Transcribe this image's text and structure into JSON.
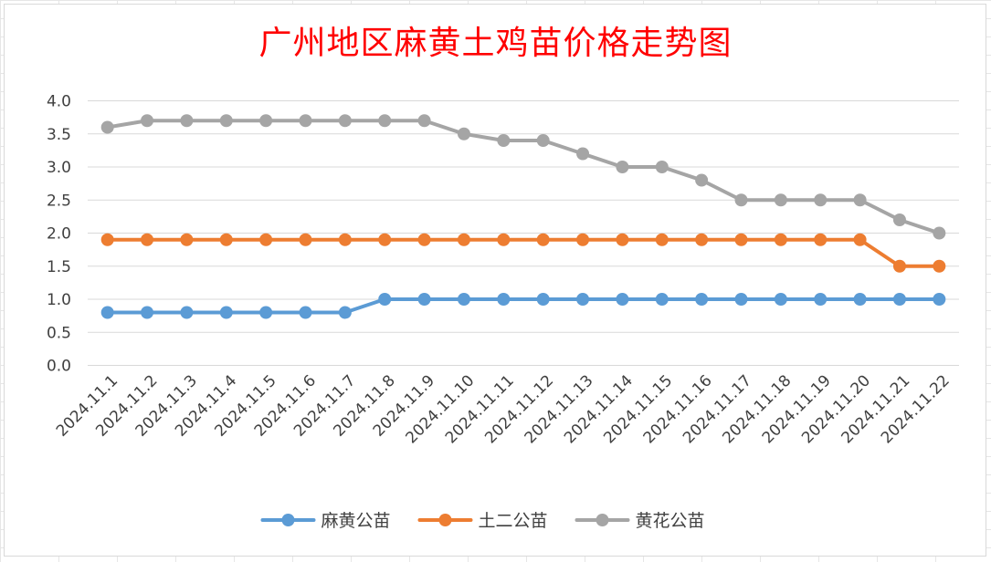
{
  "chart_data": {
    "type": "line",
    "title": "广州地区麻黄土鸡苗价格走势图",
    "xlabel": "",
    "ylabel": "",
    "ylim": [
      0,
      4
    ],
    "yticks": [
      "0.0",
      "0.5",
      "1.0",
      "1.5",
      "2.0",
      "2.5",
      "3.0",
      "3.5",
      "4.0"
    ],
    "grid": true,
    "legend_position": "bottom",
    "categories": [
      "2024.11.1",
      "2024.11.2",
      "2024.11.3",
      "2024.11.4",
      "2024.11.5",
      "2024.11.6",
      "2024.11.7",
      "2024.11.8",
      "2024.11.9",
      "2024.11.10",
      "2024.11.11",
      "2024.11.12",
      "2024.11.13",
      "2024.11.14",
      "2024.11.15",
      "2024.11.16",
      "2024.11.17",
      "2024.11.18",
      "2024.11.19",
      "2024.11.20",
      "2024.11.21",
      "2024.11.22"
    ],
    "series": [
      {
        "name": "麻黄公苗",
        "color": "#5b9bd5",
        "values": [
          0.8,
          0.8,
          0.8,
          0.8,
          0.8,
          0.8,
          0.8,
          1.0,
          1.0,
          1.0,
          1.0,
          1.0,
          1.0,
          1.0,
          1.0,
          1.0,
          1.0,
          1.0,
          1.0,
          1.0,
          1.0,
          1.0
        ]
      },
      {
        "name": "土二公苗",
        "color": "#ed7d31",
        "values": [
          1.9,
          1.9,
          1.9,
          1.9,
          1.9,
          1.9,
          1.9,
          1.9,
          1.9,
          1.9,
          1.9,
          1.9,
          1.9,
          1.9,
          1.9,
          1.9,
          1.9,
          1.9,
          1.9,
          1.9,
          1.5,
          1.5
        ]
      },
      {
        "name": "黄花公苗",
        "color": "#a5a5a5",
        "values": [
          3.6,
          3.7,
          3.7,
          3.7,
          3.7,
          3.7,
          3.7,
          3.7,
          3.7,
          3.5,
          3.4,
          3.4,
          3.2,
          3.0,
          3.0,
          2.8,
          2.5,
          2.5,
          2.5,
          2.5,
          2.2,
          2.0
        ]
      }
    ]
  }
}
